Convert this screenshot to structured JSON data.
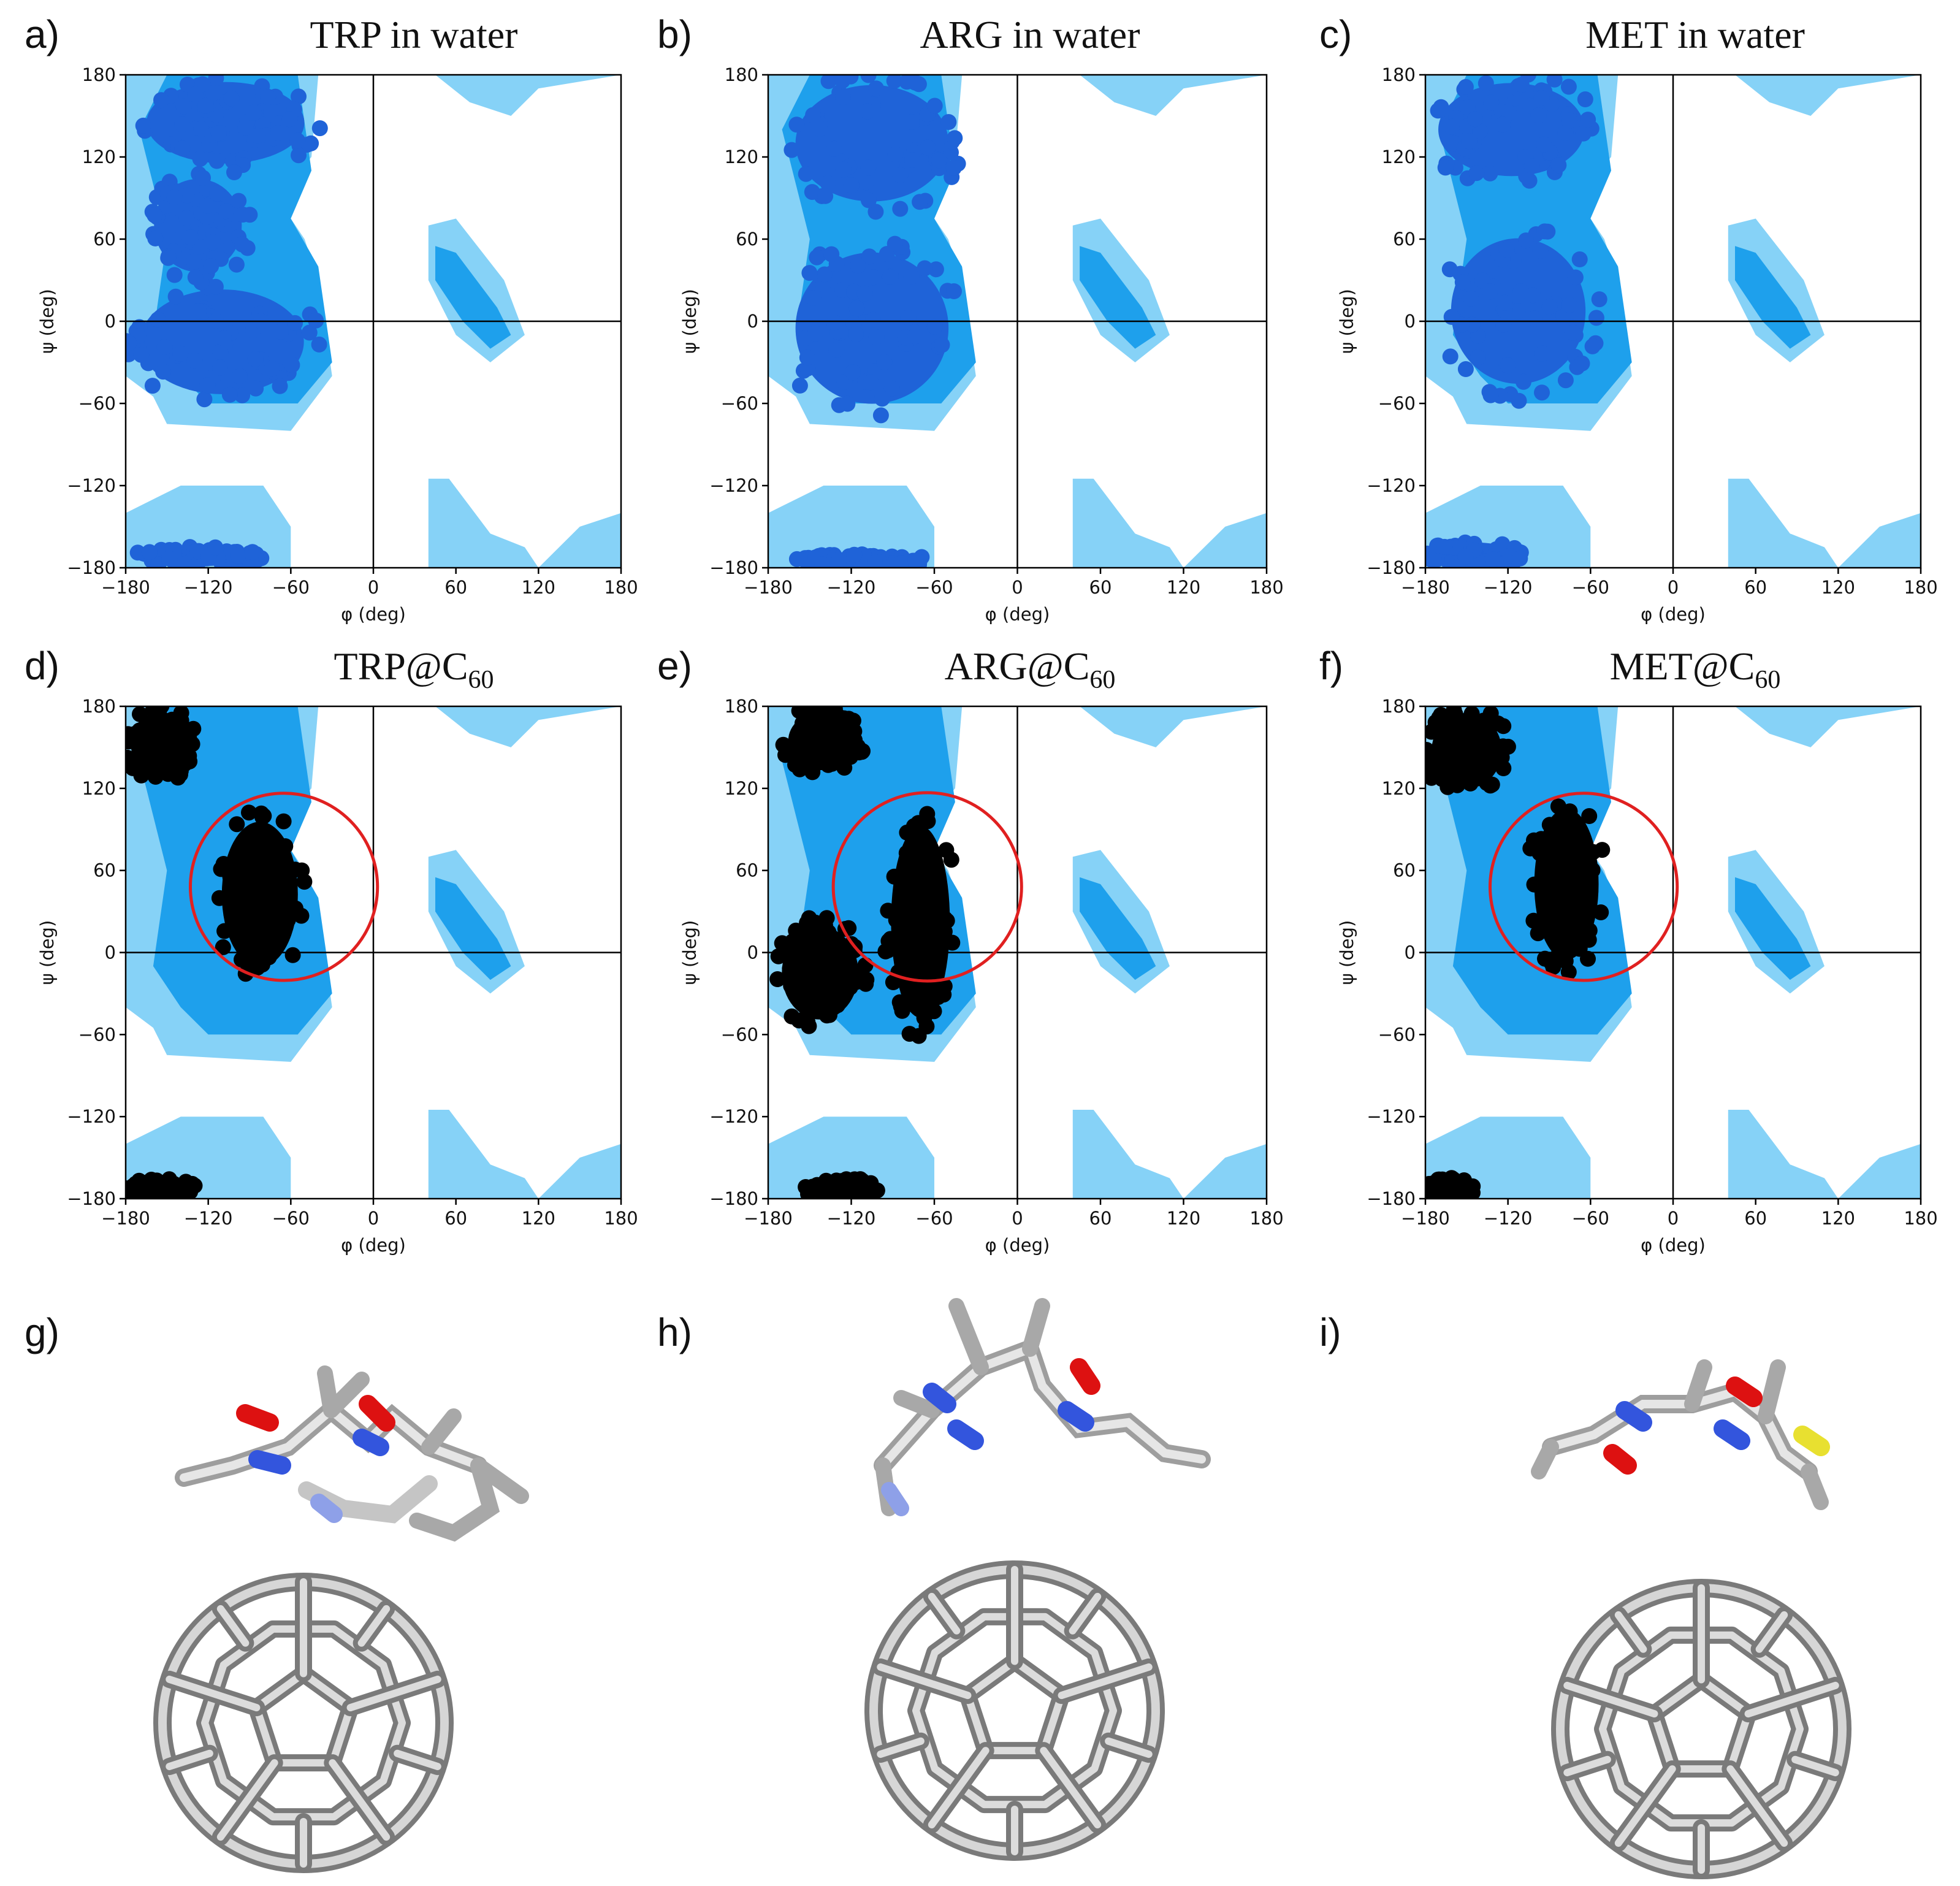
{
  "figure": {
    "colors": {
      "light_region": "#86d2f7",
      "mid_region": "#1ea0ec",
      "water_points": "#1f63d8",
      "c60_points": "#000000",
      "circle": "#e02020",
      "atom_c": "#c8c8c8",
      "atom_n": "#3355dd",
      "atom_o": "#dd1111",
      "atom_s": "#e8e030"
    }
  },
  "panels": [
    {
      "letter": "a)",
      "title": "TRP in water",
      "title_sub": ""
    },
    {
      "letter": "b)",
      "title": "ARG in water",
      "title_sub": ""
    },
    {
      "letter": "c)",
      "title": "MET in water",
      "title_sub": ""
    },
    {
      "letter": "d)",
      "title": "TRP@C",
      "title_sub": "60"
    },
    {
      "letter": "e)",
      "title": "ARG@C",
      "title_sub": "60"
    },
    {
      "letter": "f)",
      "title": "MET@C",
      "title_sub": "60"
    },
    {
      "letter": "g)",
      "title": "",
      "title_sub": ""
    },
    {
      "letter": "h)",
      "title": "",
      "title_sub": ""
    },
    {
      "letter": "i)",
      "title": "",
      "title_sub": ""
    }
  ],
  "chart_data": [
    {
      "type": "scatter",
      "title": "TRP in water",
      "xlabel": "φ (deg)",
      "ylabel": "ψ (deg)",
      "xlim": [
        -180,
        180
      ],
      "ylim": [
        -180,
        180
      ],
      "xticks": [
        "−180",
        "−120",
        "−60",
        "0",
        "60",
        "120",
        "180"
      ],
      "yticks": [
        "180",
        "120",
        "60",
        "0",
        "−60",
        "−120",
        "−180"
      ],
      "series": [
        {
          "name": "TRP in water",
          "clusters": [
            {
              "phi": [
                -175,
                -40
              ],
              "psi": [
                110,
                180
              ]
            },
            {
              "phi": [
                -180,
                -40
              ],
              "psi": [
                -60,
                30
              ]
            },
            {
              "phi": [
                -165,
                -90
              ],
              "psi": [
                30,
                110
              ]
            },
            {
              "phi": [
                -180,
                -80
              ],
              "psi": [
                -180,
                -165
              ]
            }
          ]
        }
      ]
    },
    {
      "type": "scatter",
      "title": "ARG in water",
      "xlabel": "φ (deg)",
      "ylabel": "ψ (deg)",
      "xlim": [
        -180,
        180
      ],
      "ylim": [
        -180,
        180
      ],
      "xticks": [
        "−180",
        "−120",
        "−60",
        "0",
        "60",
        "120",
        "180"
      ],
      "yticks": [
        "180",
        "120",
        "60",
        "0",
        "−60",
        "−120",
        "−180"
      ],
      "series": [
        {
          "name": "ARG in water",
          "clusters": [
            {
              "phi": [
                -170,
                -40
              ],
              "psi": [
                80,
                180
              ]
            },
            {
              "phi": [
                -170,
                -40
              ],
              "psi": [
                -70,
                60
              ]
            },
            {
              "phi": [
                -160,
                -60
              ],
              "psi": [
                -180,
                -170
              ]
            }
          ]
        }
      ]
    },
    {
      "type": "scatter",
      "title": "MET in water",
      "xlabel": "φ (deg)",
      "ylabel": "ψ (deg)",
      "xlim": [
        -180,
        180
      ],
      "ylim": [
        -180,
        180
      ],
      "xticks": [
        "−180",
        "−120",
        "−60",
        "0",
        "60",
        "120",
        "180"
      ],
      "yticks": [
        "180",
        "120",
        "60",
        "0",
        "−60",
        "−120",
        "−180"
      ],
      "series": [
        {
          "name": "MET in water",
          "clusters": [
            {
              "phi": [
                -180,
                -55
              ],
              "psi": [
                100,
                180
              ]
            },
            {
              "phi": [
                -170,
                -55
              ],
              "psi": [
                -55,
                70
              ]
            },
            {
              "phi": [
                -180,
                -110
              ],
              "psi": [
                -180,
                -160
              ]
            }
          ]
        }
      ]
    },
    {
      "type": "scatter",
      "title": "TRP@C60",
      "xlabel": "φ (deg)",
      "ylabel": "ψ (deg)",
      "xlim": [
        -180,
        180
      ],
      "ylim": [
        -180,
        180
      ],
      "xticks": [
        "−180",
        "−120",
        "−60",
        "0",
        "60",
        "120",
        "180"
      ],
      "yticks": [
        "180",
        "120",
        "60",
        "0",
        "−60",
        "−120",
        "−180"
      ],
      "circle": {
        "phi": -65,
        "psi": 48,
        "radius": 68
      },
      "series": [
        {
          "name": "TRP@C60",
          "clusters": [
            {
              "phi": [
                -180,
                -130
              ],
              "psi": [
                125,
                180
              ]
            },
            {
              "phi": [
                -115,
                -50
              ],
              "psi": [
                -20,
                105
              ]
            },
            {
              "phi": [
                -180,
                -130
              ],
              "psi": [
                -180,
                -165
              ]
            }
          ]
        }
      ]
    },
    {
      "type": "scatter",
      "title": "ARG@C60",
      "xlabel": "φ (deg)",
      "ylabel": "ψ (deg)",
      "xlim": [
        -180,
        180
      ],
      "ylim": [
        -180,
        180
      ],
      "xticks": [
        "−180",
        "−120",
        "−60",
        "0",
        "60",
        "120",
        "180"
      ],
      "yticks": [
        "180",
        "120",
        "60",
        "0",
        "−60",
        "−120",
        "−180"
      ],
      "circle": {
        "phi": -65,
        "psi": 48,
        "radius": 68
      },
      "series": [
        {
          "name": "ARG@C60",
          "clusters": [
            {
              "phi": [
                -170,
                -110
              ],
              "psi": [
                130,
                180
              ]
            },
            {
              "phi": [
                -95,
                -45
              ],
              "psi": [
                -60,
                105
              ]
            },
            {
              "phi": [
                -175,
                -110
              ],
              "psi": [
                -55,
                25
              ]
            },
            {
              "phi": [
                -155,
                -100
              ],
              "psi": [
                -180,
                -165
              ]
            }
          ]
        }
      ]
    },
    {
      "type": "scatter",
      "title": "MET@C60",
      "xlabel": "φ (deg)",
      "ylabel": "ψ (deg)",
      "xlim": [
        -180,
        180
      ],
      "ylim": [
        -180,
        180
      ],
      "xticks": [
        "−180",
        "−120",
        "−60",
        "0",
        "60",
        "120",
        "180"
      ],
      "yticks": [
        "180",
        "120",
        "60",
        "0",
        "−60",
        "−120",
        "−180"
      ],
      "circle": {
        "phi": -65,
        "psi": 48,
        "radius": 68
      },
      "series": [
        {
          "name": "MET@C60",
          "clusters": [
            {
              "phi": [
                -180,
                -120
              ],
              "psi": [
                115,
                180
              ]
            },
            {
              "phi": [
                -105,
                -50
              ],
              "psi": [
                -15,
                115
              ]
            },
            {
              "phi": [
                -180,
                -145
              ],
              "psi": [
                -180,
                -165
              ]
            }
          ]
        }
      ]
    }
  ]
}
